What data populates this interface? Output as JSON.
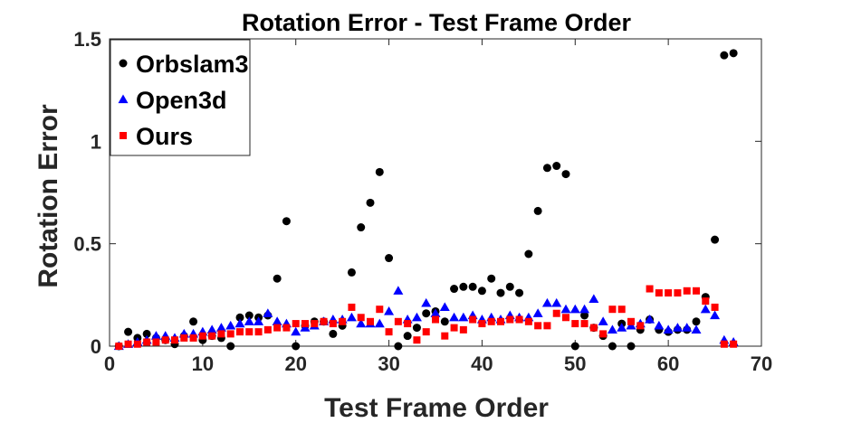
{
  "chart_data": {
    "type": "scatter",
    "title": "Rotation Error - Test Frame Order",
    "xlabel": "Test Frame Order",
    "ylabel": "Rotation Error",
    "xlim": [
      0,
      70
    ],
    "ylim": [
      0,
      1.5
    ],
    "xticks": [
      0,
      10,
      20,
      30,
      40,
      50,
      60,
      70
    ],
    "yticks": [
      0,
      0.5,
      1,
      1.5
    ],
    "ytick_labels": [
      "0",
      "0.5",
      "1",
      "1.5"
    ],
    "grid": false,
    "legend_position": "top-left",
    "series": [
      {
        "name": "Orbslam3",
        "marker": "circle",
        "color": "#000000",
        "points": [
          [
            1,
            0.0
          ],
          [
            2,
            0.07
          ],
          [
            3,
            0.04
          ],
          [
            4,
            0.06
          ],
          [
            5,
            0.04
          ],
          [
            6,
            0.03
          ],
          [
            7,
            0.01
          ],
          [
            8,
            0.05
          ],
          [
            9,
            0.12
          ],
          [
            10,
            0.03
          ],
          [
            11,
            0.05
          ],
          [
            12,
            0.04
          ],
          [
            13,
            0.0
          ],
          [
            14,
            0.14
          ],
          [
            15,
            0.15
          ],
          [
            16,
            0.14
          ],
          [
            17,
            0.15
          ],
          [
            18,
            0.33
          ],
          [
            19,
            0.61
          ],
          [
            20,
            0.0
          ],
          [
            21,
            0.1
          ],
          [
            22,
            0.12
          ],
          [
            23,
            0.12
          ],
          [
            24,
            0.06
          ],
          [
            25,
            0.1
          ],
          [
            26,
            0.36
          ],
          [
            27,
            0.58
          ],
          [
            28,
            0.7
          ],
          [
            29,
            0.85
          ],
          [
            30,
            0.43
          ],
          [
            31,
            0.0
          ],
          [
            32,
            0.05
          ],
          [
            33,
            0.09
          ],
          [
            34,
            0.16
          ],
          [
            35,
            0.17
          ],
          [
            36,
            0.12
          ],
          [
            37,
            0.28
          ],
          [
            38,
            0.29
          ],
          [
            39,
            0.29
          ],
          [
            40,
            0.27
          ],
          [
            41,
            0.33
          ],
          [
            42,
            0.26
          ],
          [
            43,
            0.29
          ],
          [
            44,
            0.26
          ],
          [
            45,
            0.45
          ],
          [
            46,
            0.66
          ],
          [
            47,
            0.87
          ],
          [
            48,
            0.88
          ],
          [
            49,
            0.84
          ],
          [
            50,
            0.0
          ],
          [
            51,
            0.15
          ],
          [
            52,
            0.09
          ],
          [
            53,
            0.05
          ],
          [
            54,
            0.0
          ],
          [
            55,
            0.11
          ],
          [
            56,
            0.0
          ],
          [
            57,
            0.08
          ],
          [
            58,
            0.13
          ],
          [
            59,
            0.08
          ],
          [
            60,
            0.07
          ],
          [
            61,
            0.08
          ],
          [
            62,
            0.08
          ],
          [
            63,
            0.12
          ],
          [
            64,
            0.24
          ],
          [
            65,
            0.52
          ],
          [
            66,
            1.42
          ],
          [
            67,
            1.43
          ]
        ]
      },
      {
        "name": "Open3d",
        "marker": "triangle",
        "color": "#0000ff",
        "points": [
          [
            1,
            0.0
          ],
          [
            2,
            0.01
          ],
          [
            3,
            0.02
          ],
          [
            4,
            0.03
          ],
          [
            5,
            0.05
          ],
          [
            6,
            0.05
          ],
          [
            7,
            0.04
          ],
          [
            8,
            0.06
          ],
          [
            9,
            0.06
          ],
          [
            10,
            0.07
          ],
          [
            11,
            0.08
          ],
          [
            12,
            0.09
          ],
          [
            13,
            0.1
          ],
          [
            14,
            0.11
          ],
          [
            15,
            0.12
          ],
          [
            16,
            0.12
          ],
          [
            17,
            0.16
          ],
          [
            18,
            0.12
          ],
          [
            19,
            0.11
          ],
          [
            20,
            0.07
          ],
          [
            21,
            0.09
          ],
          [
            22,
            0.1
          ],
          [
            23,
            0.12
          ],
          [
            24,
            0.13
          ],
          [
            25,
            0.13
          ],
          [
            26,
            0.14
          ],
          [
            27,
            0.11
          ],
          [
            28,
            0.11
          ],
          [
            29,
            0.11
          ],
          [
            30,
            0.17
          ],
          [
            31,
            0.27
          ],
          [
            32,
            0.13
          ],
          [
            33,
            0.14
          ],
          [
            34,
            0.21
          ],
          [
            35,
            0.16
          ],
          [
            36,
            0.19
          ],
          [
            37,
            0.14
          ],
          [
            38,
            0.14
          ],
          [
            39,
            0.15
          ],
          [
            40,
            0.13
          ],
          [
            41,
            0.14
          ],
          [
            42,
            0.13
          ],
          [
            43,
            0.15
          ],
          [
            44,
            0.14
          ],
          [
            45,
            0.14
          ],
          [
            46,
            0.16
          ],
          [
            47,
            0.21
          ],
          [
            48,
            0.21
          ],
          [
            49,
            0.18
          ],
          [
            50,
            0.18
          ],
          [
            51,
            0.18
          ],
          [
            52,
            0.23
          ],
          [
            53,
            0.12
          ],
          [
            54,
            0.08
          ],
          [
            55,
            0.09
          ],
          [
            56,
            0.1
          ],
          [
            57,
            0.11
          ],
          [
            58,
            0.13
          ],
          [
            59,
            0.1
          ],
          [
            60,
            0.08
          ],
          [
            61,
            0.09
          ],
          [
            62,
            0.09
          ],
          [
            63,
            0.08
          ],
          [
            64,
            0.18
          ],
          [
            65,
            0.15
          ],
          [
            66,
            0.03
          ],
          [
            67,
            0.02
          ]
        ]
      },
      {
        "name": "Ours",
        "marker": "square",
        "color": "#ff0000",
        "points": [
          [
            1,
            0.0
          ],
          [
            2,
            0.01
          ],
          [
            3,
            0.01
          ],
          [
            4,
            0.02
          ],
          [
            5,
            0.02
          ],
          [
            6,
            0.03
          ],
          [
            7,
            0.03
          ],
          [
            8,
            0.04
          ],
          [
            9,
            0.04
          ],
          [
            10,
            0.05
          ],
          [
            11,
            0.05
          ],
          [
            12,
            0.06
          ],
          [
            13,
            0.06
          ],
          [
            14,
            0.07
          ],
          [
            15,
            0.07
          ],
          [
            16,
            0.07
          ],
          [
            17,
            0.08
          ],
          [
            18,
            0.09
          ],
          [
            19,
            0.09
          ],
          [
            20,
            0.11
          ],
          [
            21,
            0.11
          ],
          [
            22,
            0.11
          ],
          [
            23,
            0.12
          ],
          [
            24,
            0.11
          ],
          [
            25,
            0.12
          ],
          [
            26,
            0.19
          ],
          [
            27,
            0.14
          ],
          [
            28,
            0.12
          ],
          [
            29,
            0.18
          ],
          [
            30,
            0.07
          ],
          [
            31,
            0.12
          ],
          [
            32,
            0.11
          ],
          [
            33,
            0.03
          ],
          [
            34,
            0.07
          ],
          [
            35,
            0.13
          ],
          [
            36,
            0.05
          ],
          [
            37,
            0.09
          ],
          [
            38,
            0.08
          ],
          [
            39,
            0.13
          ],
          [
            40,
            0.11
          ],
          [
            41,
            0.12
          ],
          [
            42,
            0.12
          ],
          [
            43,
            0.13
          ],
          [
            44,
            0.13
          ],
          [
            45,
            0.12
          ],
          [
            46,
            0.1
          ],
          [
            47,
            0.1
          ],
          [
            48,
            0.16
          ],
          [
            49,
            0.14
          ],
          [
            50,
            0.11
          ],
          [
            51,
            0.11
          ],
          [
            52,
            0.09
          ],
          [
            53,
            0.06
          ],
          [
            54,
            0.18
          ],
          [
            55,
            0.18
          ],
          [
            56,
            0.12
          ],
          [
            57,
            0.1
          ],
          [
            58,
            0.28
          ],
          [
            59,
            0.26
          ],
          [
            60,
            0.26
          ],
          [
            61,
            0.26
          ],
          [
            62,
            0.27
          ],
          [
            63,
            0.27
          ],
          [
            64,
            0.22
          ],
          [
            65,
            0.19
          ],
          [
            66,
            0.01
          ],
          [
            67,
            0.01
          ]
        ]
      }
    ]
  }
}
